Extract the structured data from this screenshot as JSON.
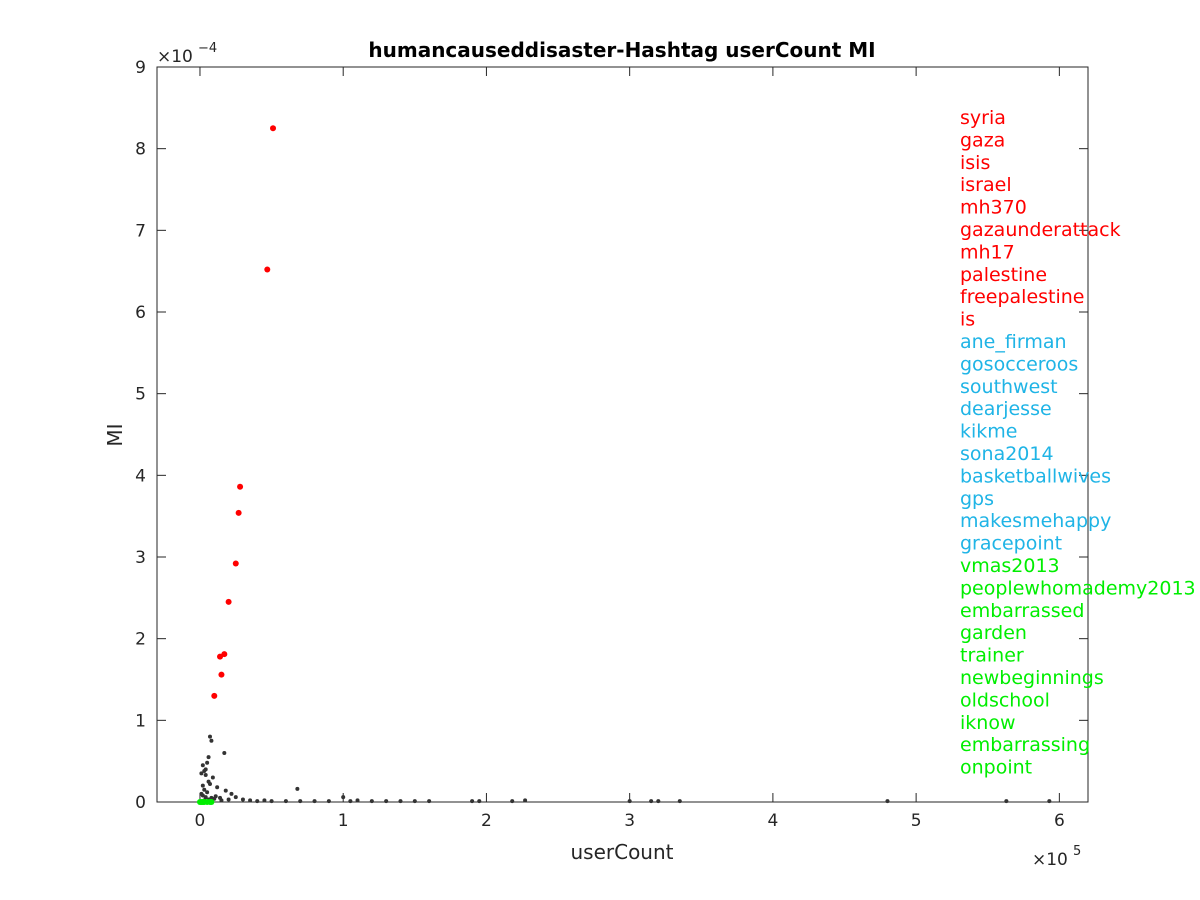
{
  "chart_data": {
    "type": "scatter",
    "title": "humancauseddisaster-Hashtag userCount MI",
    "xlabel": "userCount",
    "ylabel": "MI",
    "x_scale_label": "×10",
    "x_scale_exp": "5",
    "y_scale_label": "×10",
    "y_scale_exp": "−4",
    "xlim": [
      -0.3,
      6.2
    ],
    "ylim": [
      0,
      9
    ],
    "x_ticks": [
      "0",
      "1",
      "2",
      "3",
      "4",
      "5",
      "6"
    ],
    "y_ticks": [
      "0",
      "1",
      "2",
      "3",
      "4",
      "5",
      "6",
      "7",
      "8",
      "9"
    ],
    "grid": false,
    "colors": {
      "top": "#ff0000",
      "middle": "#1fb4e6",
      "bottom": "#00ee00",
      "other": "#333333"
    },
    "series": [
      {
        "group": "top",
        "x": [
          0.51,
          0.47,
          0.28,
          0.27,
          0.25,
          0.2,
          0.17,
          0.14,
          0.15,
          0.1
        ],
        "y": [
          8.25,
          6.52,
          3.86,
          3.54,
          2.92,
          2.45,
          1.81,
          1.78,
          1.56,
          1.3
        ]
      },
      {
        "group": "other",
        "x": [
          0.07,
          0.08,
          0.06,
          0.05,
          0.17,
          0.03,
          0.04,
          0.06,
          0.02,
          0.03,
          0.05,
          0.01,
          0.02,
          0.04,
          0.07,
          0.09,
          0.12,
          0.18,
          0.22,
          0.25,
          0.68,
          0.03,
          0.06,
          0.1,
          0.15,
          0.3,
          0.35,
          0.4,
          0.5,
          0.6,
          0.7,
          0.8,
          0.9,
          1.0,
          1.05,
          1.1,
          1.2,
          1.3,
          1.4,
          1.5,
          1.6,
          1.9,
          1.95,
          2.18,
          2.27,
          3.0,
          3.15,
          3.2,
          3.35,
          4.8,
          5.63,
          5.93,
          0.02,
          0.01,
          0.04,
          0.08,
          0.11,
          0.14,
          0.2,
          0.45
        ],
        "y": [
          0.8,
          0.75,
          0.55,
          0.48,
          0.6,
          0.38,
          0.33,
          0.25,
          0.2,
          0.15,
          0.12,
          0.1,
          0.08,
          0.06,
          0.22,
          0.3,
          0.18,
          0.14,
          0.1,
          0.06,
          0.16,
          0.02,
          0.03,
          0.04,
          0.02,
          0.03,
          0.02,
          0.01,
          0.01,
          0.01,
          0.01,
          0.01,
          0.01,
          0.06,
          0.01,
          0.02,
          0.01,
          0.01,
          0.01,
          0.01,
          0.01,
          0.01,
          0.01,
          0.01,
          0.02,
          0.01,
          0.01,
          0.01,
          0.01,
          0.01,
          0.01,
          0.01,
          0.45,
          0.35,
          0.4,
          0.05,
          0.07,
          0.05,
          0.03,
          0.02
        ]
      },
      {
        "group": "bottom",
        "x": [
          0.0,
          0.01,
          0.02,
          0.03,
          0.05,
          0.07,
          0.08
        ],
        "y": [
          0.0,
          0.0,
          0.0,
          0.0,
          0.0,
          0.0,
          0.0
        ]
      }
    ],
    "legend": [
      {
        "label": "syria",
        "group": "top"
      },
      {
        "label": "gaza",
        "group": "top"
      },
      {
        "label": "isis",
        "group": "top"
      },
      {
        "label": "israel",
        "group": "top"
      },
      {
        "label": "mh370",
        "group": "top"
      },
      {
        "label": "gazaunderattack",
        "group": "top"
      },
      {
        "label": "mh17",
        "group": "top"
      },
      {
        "label": "palestine",
        "group": "top"
      },
      {
        "label": "freepalestine",
        "group": "top"
      },
      {
        "label": "is",
        "group": "top"
      },
      {
        "label": "ane_firman",
        "group": "middle"
      },
      {
        "label": "gosocceroos",
        "group": "middle"
      },
      {
        "label": "southwest",
        "group": "middle"
      },
      {
        "label": "dearjesse",
        "group": "middle"
      },
      {
        "label": "kikme",
        "group": "middle"
      },
      {
        "label": "sona2014",
        "group": "middle"
      },
      {
        "label": "basketballwives",
        "group": "middle"
      },
      {
        "label": "gps",
        "group": "middle"
      },
      {
        "label": "makesmehappy",
        "group": "middle"
      },
      {
        "label": "gracepoint",
        "group": "middle"
      },
      {
        "label": "vmas2013",
        "group": "bottom"
      },
      {
        "label": "peoplewhomademy2013",
        "group": "bottom"
      },
      {
        "label": "embarrassed",
        "group": "bottom"
      },
      {
        "label": "garden",
        "group": "bottom"
      },
      {
        "label": "trainer",
        "group": "bottom"
      },
      {
        "label": "newbeginnings",
        "group": "bottom"
      },
      {
        "label": "oldschool",
        "group": "bottom"
      },
      {
        "label": "iknow",
        "group": "bottom"
      },
      {
        "label": "embarrassing",
        "group": "bottom"
      },
      {
        "label": "onpoint",
        "group": "bottom"
      }
    ]
  }
}
